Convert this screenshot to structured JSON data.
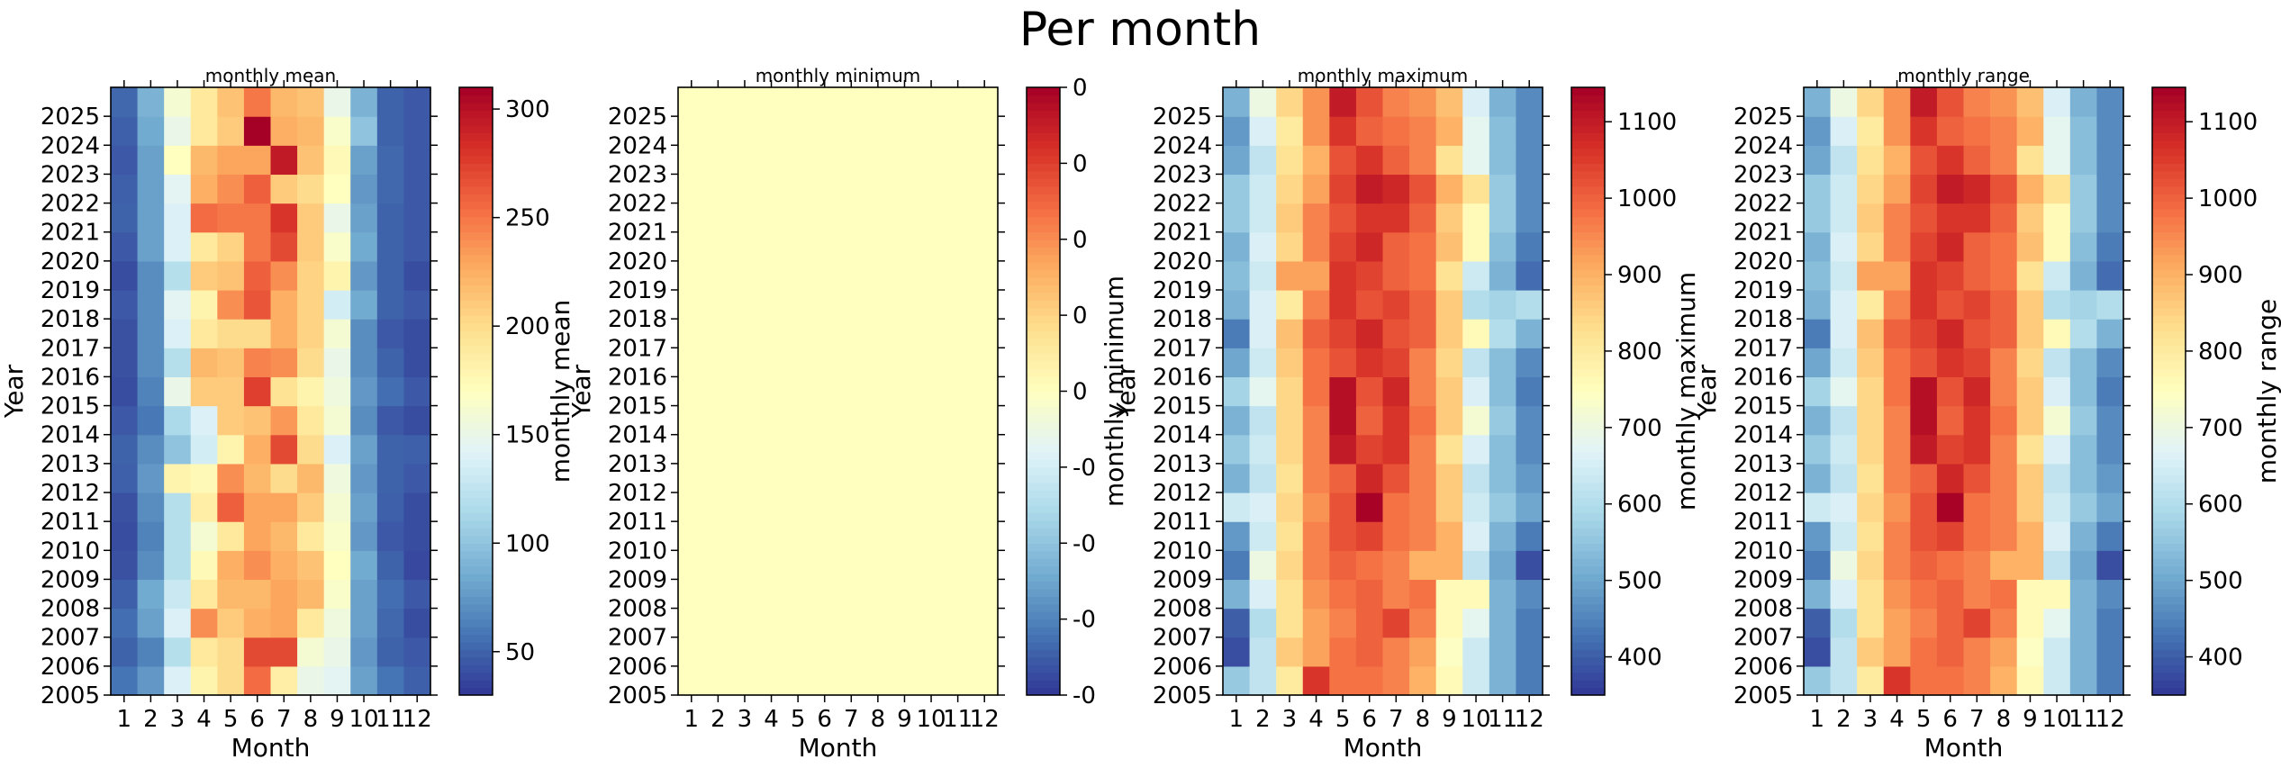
{
  "figure_title": "Per month",
  "colors": {
    "rdylbu_r": [
      "#313695",
      "#4575b4",
      "#74add1",
      "#abd9e9",
      "#e0f3f8",
      "#ffffbf",
      "#fee090",
      "#fdae61",
      "#f46d43",
      "#d73027",
      "#a50026"
    ]
  },
  "chart_data": [
    {
      "type": "heatmap",
      "title": "monthly mean",
      "xlabel": "Month",
      "ylabel": "Year",
      "colorbar_label": "monthly mean",
      "x": [
        1,
        2,
        3,
        4,
        5,
        6,
        7,
        8,
        9,
        10,
        11,
        12
      ],
      "y": [
        2005,
        2006,
        2007,
        2008,
        2009,
        2010,
        2011,
        2012,
        2013,
        2014,
        2015,
        2016,
        2017,
        2018,
        2019,
        2020,
        2021,
        2022,
        2023,
        2024,
        2025
      ],
      "vmin": 30,
      "vmax": 310,
      "colorbar_ticks": [
        50,
        100,
        150,
        200,
        250,
        300
      ],
      "values": [
        [
          58,
          75,
          140,
          180,
          200,
          255,
          185,
          150,
          145,
          80,
          58,
          48
        ],
        [
          50,
          65,
          120,
          190,
          200,
          270,
          270,
          160,
          150,
          75,
          50,
          45
        ],
        [
          55,
          80,
          140,
          240,
          210,
          225,
          230,
          190,
          155,
          80,
          52,
          40
        ],
        [
          48,
          85,
          130,
          190,
          220,
          220,
          230,
          220,
          165,
          80,
          55,
          45
        ],
        [
          42,
          70,
          120,
          175,
          225,
          240,
          225,
          215,
          170,
          85,
          50,
          38
        ],
        [
          40,
          65,
          120,
          160,
          190,
          230,
          220,
          190,
          165,
          75,
          45,
          40
        ],
        [
          42,
          70,
          120,
          185,
          260,
          230,
          230,
          210,
          160,
          80,
          48,
          40
        ],
        [
          48,
          75,
          180,
          175,
          240,
          220,
          200,
          220,
          155,
          75,
          50,
          45
        ],
        [
          50,
          70,
          100,
          135,
          180,
          225,
          270,
          200,
          140,
          80,
          50,
          48
        ],
        [
          45,
          60,
          115,
          140,
          210,
          215,
          235,
          190,
          160,
          70,
          45,
          40
        ],
        [
          40,
          65,
          150,
          210,
          210,
          275,
          195,
          180,
          155,
          75,
          55,
          45
        ],
        [
          42,
          70,
          120,
          220,
          215,
          245,
          240,
          200,
          150,
          70,
          50,
          40
        ],
        [
          42,
          70,
          140,
          190,
          200,
          200,
          225,
          205,
          160,
          70,
          45,
          40
        ],
        [
          45,
          70,
          145,
          180,
          240,
          265,
          225,
          205,
          135,
          85,
          50,
          45
        ],
        [
          40,
          70,
          120,
          210,
          215,
          260,
          240,
          205,
          180,
          75,
          50,
          40
        ],
        [
          45,
          80,
          140,
          190,
          205,
          250,
          270,
          210,
          165,
          85,
          50,
          45
        ],
        [
          50,
          80,
          140,
          255,
          250,
          250,
          280,
          210,
          150,
          80,
          50,
          45
        ],
        [
          48,
          80,
          145,
          225,
          240,
          260,
          210,
          200,
          170,
          75,
          52,
          45
        ],
        [
          45,
          80,
          170,
          220,
          230,
          230,
          295,
          215,
          175,
          80,
          52,
          45
        ],
        [
          48,
          85,
          150,
          190,
          210,
          310,
          225,
          220,
          165,
          100,
          50,
          45
        ],
        [
          52,
          90,
          160,
          190,
          215,
          250,
          220,
          215,
          150,
          90,
          50,
          45
        ]
      ]
    },
    {
      "type": "heatmap",
      "title": "monthly minimum",
      "xlabel": "Month",
      "ylabel": "Year",
      "colorbar_label": "monthly minimum",
      "x": [
        1,
        2,
        3,
        4,
        5,
        6,
        7,
        8,
        9,
        10,
        11,
        12
      ],
      "y": [
        2005,
        2006,
        2007,
        2008,
        2009,
        2010,
        2011,
        2012,
        2013,
        2014,
        2015,
        2016,
        2017,
        2018,
        2019,
        2020,
        2021,
        2022,
        2023,
        2024,
        2025
      ],
      "vmin": -0.04,
      "vmax": 0.04,
      "colorbar_ticks": [
        -0.04,
        -0.03,
        -0.02,
        -0.01,
        0,
        0.01,
        0.02,
        0.03,
        0.04
      ],
      "colorbar_tick_labels": [
        "-0",
        "-0",
        "-0",
        "-0",
        "0",
        "0",
        "0",
        "0",
        "0"
      ],
      "uniform_value": 0
    },
    {
      "type": "heatmap",
      "title": "monthly maximum",
      "xlabel": "Month",
      "ylabel": "Year",
      "colorbar_label": "monthly maximum",
      "x": [
        1,
        2,
        3,
        4,
        5,
        6,
        7,
        8,
        9,
        10,
        11,
        12
      ],
      "y": [
        2005,
        2006,
        2007,
        2008,
        2009,
        2010,
        2011,
        2012,
        2013,
        2014,
        2015,
        2016,
        2017,
        2018,
        2019,
        2020,
        2021,
        2022,
        2023,
        2024,
        2025
      ],
      "vmin": 350,
      "vmax": 1145,
      "colorbar_ticks": [
        400,
        500,
        600,
        700,
        800,
        900,
        1000,
        1100
      ],
      "values": [
        [
          560,
          620,
          800,
          1060,
          980,
          980,
          960,
          900,
          760,
          640,
          520,
          440
        ],
        [
          380,
          620,
          860,
          920,
          980,
          1000,
          960,
          920,
          740,
          640,
          520,
          440
        ],
        [
          400,
          600,
          820,
          920,
          960,
          1000,
          1040,
          960,
          760,
          680,
          520,
          440
        ],
        [
          520,
          660,
          820,
          940,
          980,
          1000,
          960,
          980,
          760,
          760,
          520,
          460
        ],
        [
          440,
          700,
          840,
          960,
          1000,
          980,
          960,
          900,
          900,
          620,
          500,
          380
        ],
        [
          480,
          640,
          820,
          960,
          1020,
          1040,
          980,
          960,
          900,
          660,
          520,
          440
        ],
        [
          640,
          660,
          840,
          940,
          1020,
          1140,
          980,
          960,
          860,
          640,
          560,
          500
        ],
        [
          520,
          620,
          820,
          960,
          1000,
          1080,
          1020,
          960,
          860,
          620,
          540,
          480
        ],
        [
          560,
          640,
          840,
          960,
          1100,
          1040,
          1060,
          960,
          820,
          660,
          540,
          460
        ],
        [
          520,
          620,
          840,
          960,
          1120,
          1000,
          1060,
          980,
          860,
          720,
          560,
          460
        ],
        [
          580,
          680,
          840,
          980,
          1120,
          1020,
          1080,
          960,
          860,
          660,
          540,
          440
        ],
        [
          500,
          640,
          860,
          980,
          1020,
          1060,
          1040,
          960,
          840,
          620,
          540,
          460
        ],
        [
          440,
          660,
          880,
          1000,
          1040,
          1080,
          1020,
          1000,
          860,
          760,
          600,
          520
        ],
        [
          520,
          660,
          800,
          960,
          1060,
          1020,
          1040,
          1000,
          860,
          600,
          580,
          600
        ],
        [
          540,
          640,
          920,
          920,
          1060,
          1040,
          1000,
          980,
          820,
          640,
          520,
          420
        ],
        [
          520,
          660,
          840,
          960,
          1040,
          1080,
          1000,
          980,
          880,
          760,
          540,
          440
        ],
        [
          560,
          640,
          860,
          960,
          1020,
          1060,
          1060,
          1000,
          860,
          760,
          560,
          460
        ],
        [
          560,
          640,
          840,
          920,
          1040,
          1100,
          1080,
          1020,
          900,
          820,
          560,
          460
        ],
        [
          500,
          620,
          820,
          900,
          1020,
          1060,
          1000,
          960,
          820,
          680,
          540,
          460
        ],
        [
          480,
          660,
          800,
          940,
          1060,
          1000,
          980,
          960,
          900,
          680,
          540,
          460
        ],
        [
          520,
          700,
          840,
          940,
          1100,
          1020,
          960,
          940,
          880,
          660,
          520,
          460
        ]
      ]
    },
    {
      "type": "heatmap",
      "title": "monthly range",
      "xlabel": "Month",
      "ylabel": "Year",
      "colorbar_label": "monthly range",
      "x": [
        1,
        2,
        3,
        4,
        5,
        6,
        7,
        8,
        9,
        10,
        11,
        12
      ],
      "y": [
        2005,
        2006,
        2007,
        2008,
        2009,
        2010,
        2011,
        2012,
        2013,
        2014,
        2015,
        2016,
        2017,
        2018,
        2019,
        2020,
        2021,
        2022,
        2023,
        2024,
        2025
      ],
      "vmin": 350,
      "vmax": 1145,
      "colorbar_ticks": [
        400,
        500,
        600,
        700,
        800,
        900,
        1000,
        1100
      ],
      "values": [
        [
          560,
          620,
          800,
          1060,
          980,
          980,
          960,
          900,
          760,
          640,
          520,
          440
        ],
        [
          380,
          620,
          860,
          920,
          980,
          1000,
          960,
          920,
          740,
          640,
          520,
          440
        ],
        [
          400,
          600,
          820,
          920,
          960,
          1000,
          1040,
          960,
          760,
          680,
          520,
          440
        ],
        [
          520,
          660,
          820,
          940,
          980,
          1000,
          960,
          980,
          760,
          760,
          520,
          460
        ],
        [
          440,
          700,
          840,
          960,
          1000,
          980,
          960,
          900,
          900,
          620,
          500,
          380
        ],
        [
          480,
          640,
          820,
          960,
          1020,
          1040,
          980,
          960,
          900,
          660,
          520,
          440
        ],
        [
          640,
          660,
          840,
          940,
          1020,
          1140,
          980,
          960,
          860,
          640,
          560,
          500
        ],
        [
          520,
          620,
          820,
          960,
          1000,
          1080,
          1020,
          960,
          860,
          620,
          540,
          480
        ],
        [
          560,
          640,
          840,
          960,
          1100,
          1040,
          1060,
          960,
          820,
          660,
          540,
          460
        ],
        [
          520,
          620,
          840,
          960,
          1120,
          1000,
          1060,
          980,
          860,
          720,
          560,
          460
        ],
        [
          580,
          680,
          840,
          980,
          1120,
          1020,
          1080,
          960,
          860,
          660,
          540,
          440
        ],
        [
          500,
          640,
          860,
          980,
          1020,
          1060,
          1040,
          960,
          840,
          620,
          540,
          460
        ],
        [
          440,
          660,
          880,
          1000,
          1040,
          1080,
          1020,
          1000,
          860,
          760,
          600,
          520
        ],
        [
          520,
          660,
          800,
          960,
          1060,
          1020,
          1040,
          1000,
          860,
          600,
          580,
          600
        ],
        [
          540,
          640,
          920,
          920,
          1060,
          1040,
          1000,
          980,
          820,
          640,
          520,
          420
        ],
        [
          520,
          660,
          840,
          960,
          1040,
          1080,
          1000,
          980,
          880,
          760,
          540,
          440
        ],
        [
          560,
          640,
          860,
          960,
          1020,
          1060,
          1060,
          1000,
          860,
          760,
          560,
          460
        ],
        [
          560,
          640,
          840,
          920,
          1040,
          1100,
          1080,
          1020,
          900,
          820,
          560,
          460
        ],
        [
          500,
          620,
          820,
          900,
          1020,
          1060,
          1000,
          960,
          820,
          680,
          540,
          460
        ],
        [
          480,
          660,
          800,
          940,
          1060,
          1000,
          980,
          960,
          900,
          680,
          540,
          460
        ],
        [
          520,
          700,
          840,
          940,
          1100,
          1020,
          960,
          940,
          880,
          660,
          520,
          460
        ]
      ]
    }
  ]
}
